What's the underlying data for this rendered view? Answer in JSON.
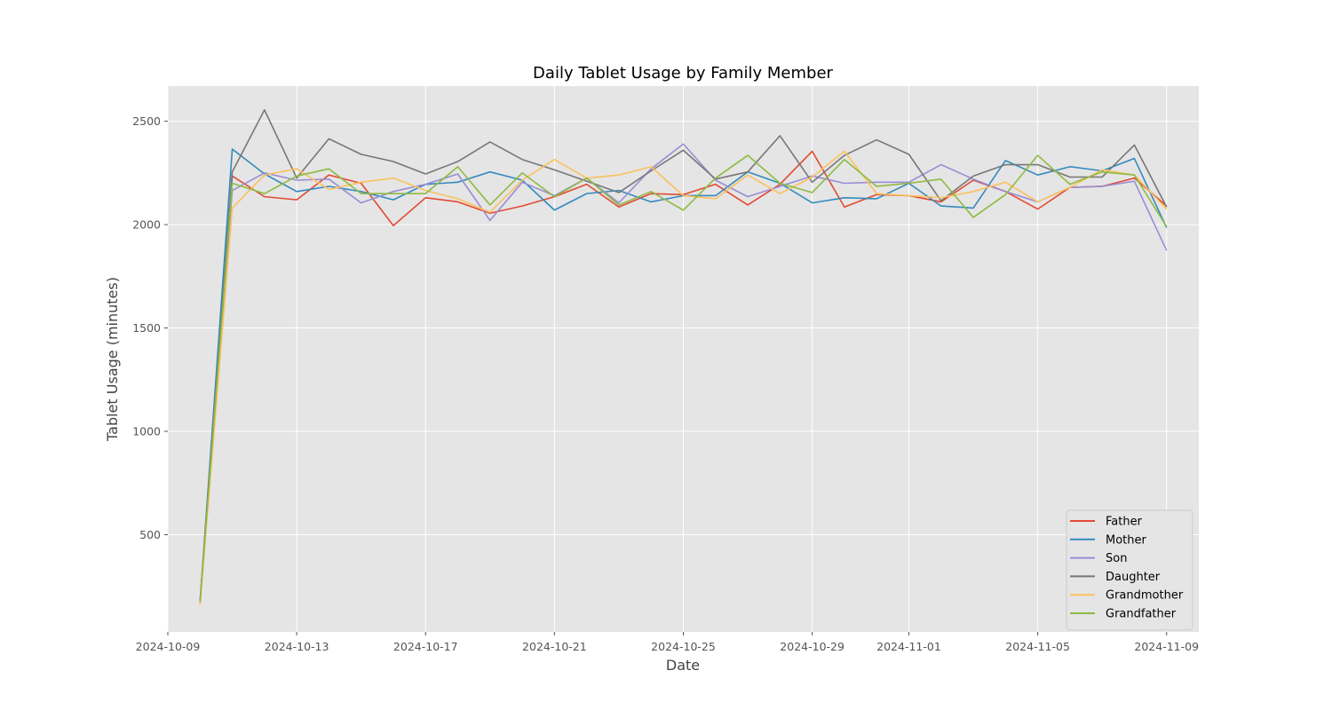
{
  "chart_data": {
    "type": "line",
    "title": "Daily Tablet Usage by Family Member",
    "xlabel": "Date",
    "ylabel": "Tablet Usage (minutes)",
    "x": [
      "2024-10-10",
      "2024-10-11",
      "2024-10-12",
      "2024-10-13",
      "2024-10-14",
      "2024-10-15",
      "2024-10-16",
      "2024-10-17",
      "2024-10-18",
      "2024-10-19",
      "2024-10-20",
      "2024-10-21",
      "2024-10-22",
      "2024-10-23",
      "2024-10-24",
      "2024-10-25",
      "2024-10-26",
      "2024-10-27",
      "2024-10-28",
      "2024-10-29",
      "2024-10-30",
      "2024-10-31",
      "2024-11-01",
      "2024-11-02",
      "2024-11-03",
      "2024-11-04",
      "2024-11-05",
      "2024-11-06",
      "2024-11-07",
      "2024-11-08",
      "2024-11-09"
    ],
    "xlim": [
      "2024-10-09",
      "2024-11-10"
    ],
    "xticks": [
      "2024-10-09",
      "2024-10-13",
      "2024-10-17",
      "2024-10-21",
      "2024-10-25",
      "2024-10-29",
      "2024-11-01",
      "2024-11-05",
      "2024-11-09"
    ],
    "ylim": [
      30,
      2670
    ],
    "yticks": [
      500,
      1000,
      1500,
      2000,
      2500
    ],
    "grid": true,
    "legend_position": "lower-right",
    "series": [
      {
        "name": "Father",
        "color": "#E24A33",
        "values": [
          175,
          2235,
          2135,
          2120,
          2240,
          2200,
          1995,
          2130,
          2110,
          2055,
          2090,
          2135,
          2195,
          2085,
          2150,
          2145,
          2195,
          2095,
          2195,
          2355,
          2085,
          2145,
          2140,
          2110,
          2215,
          2160,
          2075,
          2180,
          2185,
          2225,
          2090
        ]
      },
      {
        "name": "Mother",
        "color": "#348ABD",
        "values": [
          175,
          2365,
          2245,
          2160,
          2185,
          2160,
          2120,
          2195,
          2205,
          2255,
          2215,
          2070,
          2150,
          2165,
          2110,
          2140,
          2140,
          2255,
          2200,
          2105,
          2130,
          2125,
          2200,
          2090,
          2080,
          2310,
          2240,
          2280,
          2260,
          2320,
          1985
        ]
      },
      {
        "name": "Son",
        "color": "#988ED5",
        "values": [
          175,
          2165,
          2250,
          2215,
          2220,
          2105,
          2160,
          2195,
          2245,
          2020,
          2205,
          2140,
          2225,
          2105,
          2270,
          2390,
          2215,
          2135,
          2185,
          2235,
          2200,
          2205,
          2205,
          2290,
          2220,
          2160,
          2110,
          2180,
          2185,
          2210,
          1875
        ]
      },
      {
        "name": "Daughter",
        "color": "#777777",
        "values": [
          175,
          2255,
          2555,
          2225,
          2415,
          2340,
          2305,
          2245,
          2305,
          2400,
          2315,
          2265,
          2210,
          2155,
          2260,
          2360,
          2220,
          2255,
          2430,
          2205,
          2335,
          2410,
          2340,
          2115,
          2235,
          2290,
          2290,
          2230,
          2230,
          2385,
          2085
        ]
      },
      {
        "name": "Grandmother",
        "color": "#FBC15E",
        "values": [
          160,
          2080,
          2240,
          2270,
          2170,
          2205,
          2225,
          2165,
          2125,
          2060,
          2215,
          2315,
          2225,
          2240,
          2280,
          2140,
          2125,
          2240,
          2150,
          2230,
          2355,
          2150,
          2140,
          2130,
          2160,
          2205,
          2110,
          2180,
          2265,
          2240,
          2075
        ]
      },
      {
        "name": "Grandfather",
        "color": "#8EBA42",
        "values": [
          175,
          2200,
          2150,
          2235,
          2270,
          2150,
          2150,
          2150,
          2280,
          2095,
          2250,
          2135,
          2225,
          2095,
          2160,
          2070,
          2225,
          2335,
          2200,
          2155,
          2315,
          2185,
          2200,
          2220,
          2035,
          2145,
          2335,
          2195,
          2255,
          2240,
          1990
        ]
      }
    ]
  }
}
